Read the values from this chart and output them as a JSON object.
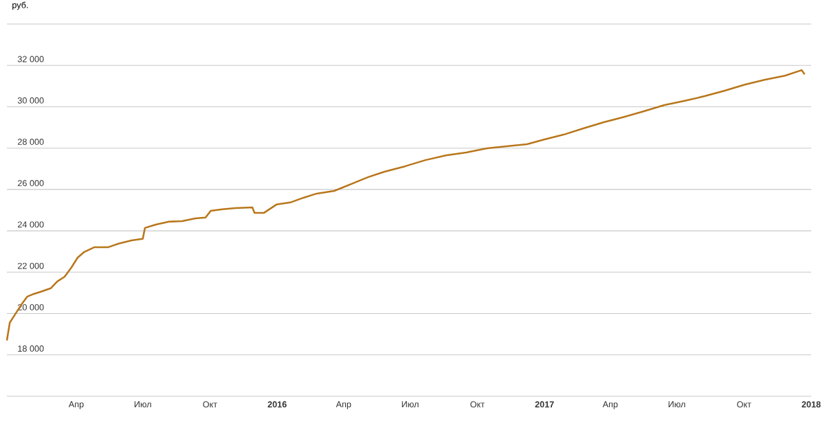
{
  "chart_data": {
    "type": "line",
    "ylabel": "руб.",
    "x": [
      "2014-12-27",
      "2014-12-31",
      "2015-01-06",
      "2015-01-15",
      "2015-01-24",
      "2015-02-02",
      "2015-02-11",
      "2015-02-25",
      "2015-03-06",
      "2015-03-16",
      "2015-03-25",
      "2015-04-03",
      "2015-04-12",
      "2015-04-26",
      "2015-05-15",
      "2015-05-29",
      "2015-06-16",
      "2015-07-01",
      "2015-07-04",
      "2015-07-19",
      "2015-08-06",
      "2015-08-24",
      "2015-09-11",
      "2015-09-25",
      "2015-10-02",
      "2015-10-18",
      "2015-11-05",
      "2015-11-28",
      "2015-12-01",
      "2015-12-14",
      "2015-12-31",
      "2016-01-19",
      "2016-02-06",
      "2016-02-24",
      "2016-03-19",
      "2016-04-11",
      "2016-05-04",
      "2016-05-27",
      "2016-06-24",
      "2016-07-22",
      "2016-08-19",
      "2016-09-16",
      "2016-10-14",
      "2016-11-10",
      "2016-12-08",
      "2017-01-01",
      "2017-01-27",
      "2017-02-23",
      "2017-03-23",
      "2017-04-20",
      "2017-05-17",
      "2017-06-14",
      "2017-07-11",
      "2017-08-08",
      "2017-09-04",
      "2017-10-02",
      "2017-10-29",
      "2017-11-26",
      "2017-12-19",
      "2017-12-23"
    ],
    "series": [
      {
        "color": "#b8761a",
        "values": [
          18700,
          19560,
          19890,
          20390,
          20820,
          20950,
          21050,
          21220,
          21550,
          21780,
          22210,
          22710,
          22980,
          23210,
          23210,
          23380,
          23540,
          23610,
          24140,
          24300,
          24440,
          24470,
          24600,
          24640,
          24970,
          25040,
          25100,
          25130,
          24870,
          24870,
          25270,
          25370,
          25600,
          25800,
          25930,
          26260,
          26590,
          26860,
          27120,
          27420,
          27650,
          27790,
          27990,
          28090,
          28190,
          28420,
          28650,
          28950,
          29250,
          29510,
          29780,
          30080,
          30280,
          30510,
          30770,
          31070,
          31300,
          31500,
          31770,
          31570
        ]
      }
    ],
    "xlim": [
      "2014-12-27",
      "2018-01-01"
    ],
    "xticks": [
      {
        "value": "2015-04-01",
        "label": "Апр"
      },
      {
        "value": "2015-07-01",
        "label": "Июл"
      },
      {
        "value": "2015-10-01",
        "label": "Окт"
      },
      {
        "value": "2016-01-01",
        "label": "2016"
      },
      {
        "value": "2016-04-01",
        "label": "Апр"
      },
      {
        "value": "2016-07-01",
        "label": "Июл"
      },
      {
        "value": "2016-10-01",
        "label": "Окт"
      },
      {
        "value": "2017-01-01",
        "label": "2017"
      },
      {
        "value": "2017-04-01",
        "label": "Апр"
      },
      {
        "value": "2017-07-01",
        "label": "Июл"
      },
      {
        "value": "2017-10-01",
        "label": "Окт"
      },
      {
        "value": "2018-01-01",
        "label": "2018"
      }
    ],
    "ylim": [
      16000,
      34000
    ],
    "yticks": [
      {
        "value": 16000,
        "label": null
      },
      {
        "value": 18000,
        "label": "18 000"
      },
      {
        "value": 20000,
        "label": "20 000"
      },
      {
        "value": 22000,
        "label": "22 000"
      },
      {
        "value": 24000,
        "label": "24 000"
      },
      {
        "value": 26000,
        "label": "26 000"
      },
      {
        "value": 28000,
        "label": "28 000"
      },
      {
        "value": 30000,
        "label": "30 000"
      },
      {
        "value": 32000,
        "label": "32 000"
      },
      {
        "value": 34000,
        "label": null
      }
    ],
    "grid": "y"
  }
}
